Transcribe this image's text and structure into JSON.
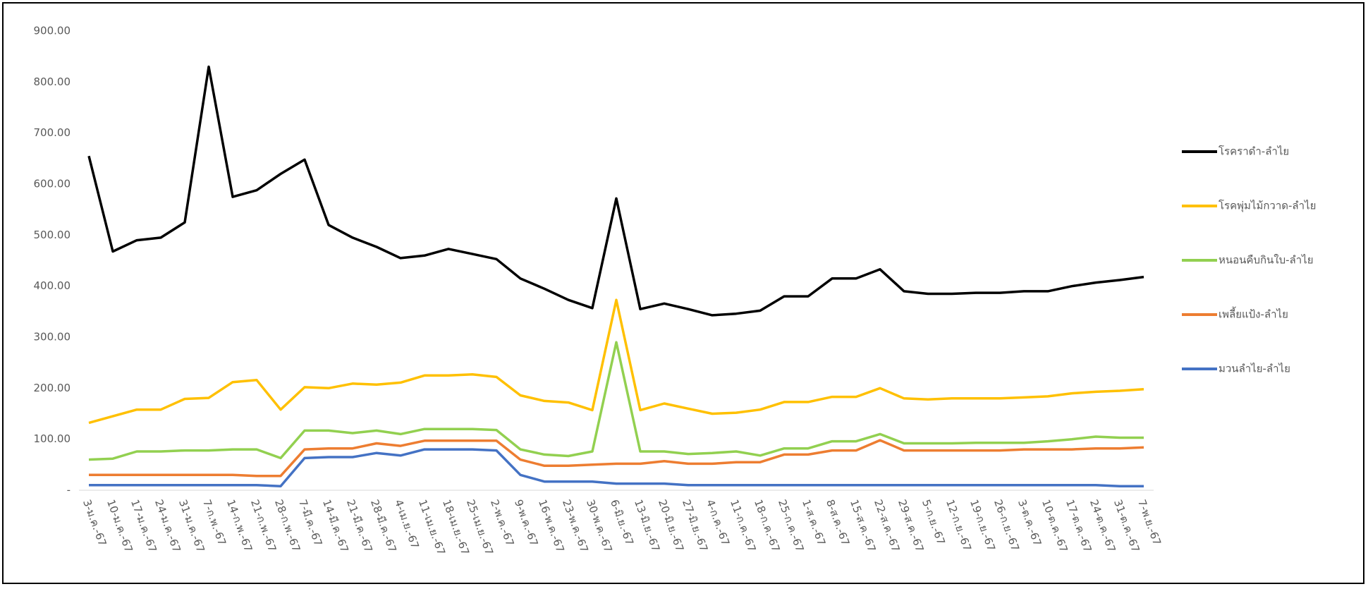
{
  "chart_data": {
    "type": "line",
    "categories": [
      "3-ม.ค.-67",
      "10-ม.ค.-67",
      "17-ม.ค.-67",
      "24-ม.ค.-67",
      "31-ม.ค.-67",
      "7-ก.พ.-67",
      "14-ก.พ.-67",
      "21-ก.พ.-67",
      "28-ก.พ.-67",
      "7-มี.ค.-67",
      "14-มี.ค.-67",
      "21-มี.ค.-67",
      "28-มี.ค.-67",
      "4-เม.ย.-67",
      "11-เม.ย.-67",
      "18-เม.ย.-67",
      "25-เม.ย.-67",
      "2-พ.ค.-67",
      "9-พ.ค.-67",
      "16-พ.ค.-67",
      "23-พ.ค.-67",
      "30-พ.ค.-67",
      "6-มิ.ย.-67",
      "13-มิ.ย.-67",
      "20-มิ.ย.-67",
      "27-มิ.ย.-67",
      "4-ก.ค.-67",
      "11-ก.ค.-67",
      "18-ก.ค.-67",
      "25-ก.ค.-67",
      "1-ส.ค.-67",
      "8-ส.ค.-67",
      "15-ส.ค.-67",
      "22-ส.ค.-67",
      "29-ส.ค.-67",
      "5-ก.ย.-67",
      "12-ก.ย.-67",
      "19-ก.ย.-67",
      "26-ก.ย.-67",
      "3-ต.ค.-67",
      "10-ต.ค.-67",
      "17-ต.ค.-67",
      "24-ต.ค.-67",
      "31-ต.ค.-67",
      "7-พ.ย.-67"
    ],
    "series": [
      {
        "name": "โรคราดำ-ลำไย",
        "color": "#000000",
        "values": [
          655,
          468,
          490,
          495,
          525,
          830,
          575,
          588,
          620,
          648,
          520,
          495,
          477,
          455,
          460,
          473,
          463,
          453,
          415,
          395,
          373,
          357,
          572,
          355,
          366,
          355,
          343,
          346,
          352,
          380,
          380,
          415,
          415,
          433,
          390,
          385,
          385,
          387,
          387,
          390,
          390,
          400,
          407,
          412,
          418
        ]
      },
      {
        "name": "โรคพุ่มไม้กวาด-ลำไย",
        "color": "#FFC000",
        "values": [
          132,
          145,
          158,
          158,
          179,
          181,
          212,
          216,
          158,
          202,
          200,
          209,
          207,
          211,
          225,
          225,
          227,
          222,
          186,
          175,
          172,
          157,
          373,
          157,
          170,
          160,
          150,
          152,
          158,
          173,
          173,
          183,
          183,
          200,
          180,
          178,
          180,
          180,
          180,
          182,
          184,
          190,
          193,
          195,
          198
        ]
      },
      {
        "name": "หนอนคืบกินใบ-ลำไย",
        "color": "#92D050",
        "values": [
          60,
          62,
          76,
          76,
          78,
          78,
          80,
          80,
          63,
          117,
          117,
          112,
          117,
          110,
          120,
          120,
          120,
          118,
          80,
          70,
          67,
          76,
          290,
          76,
          76,
          71,
          73,
          76,
          68,
          82,
          82,
          96,
          96,
          110,
          92,
          92,
          92,
          93,
          93,
          93,
          96,
          100,
          105,
          103,
          103
        ]
      },
      {
        "name": "เพลี้ยแป้ง-ลำไย",
        "color": "#ED7D31",
        "values": [
          30,
          30,
          30,
          30,
          30,
          30,
          30,
          28,
          28,
          80,
          82,
          82,
          92,
          87,
          97,
          97,
          97,
          97,
          60,
          48,
          48,
          50,
          52,
          52,
          57,
          52,
          52,
          55,
          55,
          70,
          70,
          78,
          78,
          98,
          78,
          78,
          78,
          78,
          78,
          80,
          80,
          80,
          82,
          82,
          84
        ]
      },
      {
        "name": "มวนลำไย-ลำไย",
        "color": "#4472C4",
        "values": [
          10,
          10,
          10,
          10,
          10,
          10,
          10,
          10,
          8,
          63,
          65,
          65,
          73,
          68,
          80,
          80,
          80,
          78,
          30,
          17,
          17,
          17,
          13,
          13,
          13,
          10,
          10,
          10,
          10,
          10,
          10,
          10,
          10,
          10,
          10,
          10,
          10,
          10,
          10,
          10,
          10,
          10,
          10,
          8,
          8
        ]
      }
    ],
    "ylim": [
      0,
      900
    ],
    "yticks": [
      {
        "value": 0,
        "label": "-"
      },
      {
        "value": 100,
        "label": "100.00"
      },
      {
        "value": 200,
        "label": "200.00"
      },
      {
        "value": 300,
        "label": "300.00"
      },
      {
        "value": 400,
        "label": "400.00"
      },
      {
        "value": 500,
        "label": "500.00"
      },
      {
        "value": 600,
        "label": "600.00"
      },
      {
        "value": 700,
        "label": "700.00"
      },
      {
        "value": 800,
        "label": "800.00"
      },
      {
        "value": {
          "value": 900,
          "label": "900.00"
        },
        "label": "900.00"
      }
    ],
    "legend": "right"
  }
}
